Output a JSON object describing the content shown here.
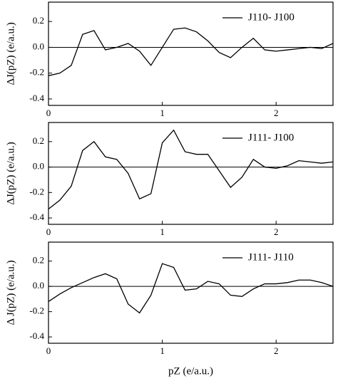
{
  "chart_data": [
    {
      "type": "line",
      "ylabel": "ΔJ(pZ) (e/a.u.)",
      "legend": "upper right",
      "x": [
        0,
        0.1,
        0.2,
        0.3,
        0.4,
        0.5,
        0.6,
        0.7,
        0.8,
        0.9,
        1.0,
        1.1,
        1.2,
        1.3,
        1.4,
        1.5,
        1.6,
        1.7,
        1.8,
        1.9,
        2.0,
        2.1,
        2.2,
        2.3,
        2.4,
        2.5
      ],
      "series": [
        {
          "name": "J110- J100",
          "color": "#000000",
          "values": [
            -0.22,
            -0.2,
            -0.14,
            0.1,
            0.13,
            -0.02,
            0.0,
            0.03,
            -0.03,
            -0.14,
            0.0,
            0.14,
            0.15,
            0.12,
            0.05,
            -0.04,
            -0.08,
            0.0,
            0.07,
            -0.02,
            -0.03,
            -0.02,
            -0.01,
            0.0,
            -0.01,
            0.03
          ]
        }
      ],
      "xlim": [
        0,
        2.5
      ],
      "xticks": [
        0,
        1,
        2
      ],
      "ylim": [
        -0.45,
        0.35
      ],
      "yticks": [
        {
          "value": 0.2,
          "label": "0.2"
        },
        {
          "value": 0,
          "label": "0.0"
        },
        {
          "value": -0.2,
          "label": "-0.2"
        },
        {
          "value": -0.4,
          "label": "-0.4"
        }
      ]
    },
    {
      "type": "line",
      "ylabel": "ΔJ(pZ) (e/a.u.)",
      "legend": "upper right",
      "x": [
        0,
        0.1,
        0.2,
        0.3,
        0.4,
        0.5,
        0.6,
        0.7,
        0.8,
        0.9,
        1.0,
        1.1,
        1.2,
        1.3,
        1.4,
        1.5,
        1.6,
        1.7,
        1.8,
        1.9,
        2.0,
        2.1,
        2.2,
        2.3,
        2.4,
        2.5
      ],
      "series": [
        {
          "name": "J111- J100",
          "color": "#000000",
          "values": [
            -0.33,
            -0.26,
            -0.15,
            0.13,
            0.2,
            0.08,
            0.06,
            -0.05,
            -0.25,
            -0.21,
            0.19,
            0.29,
            0.12,
            0.1,
            0.1,
            -0.03,
            -0.16,
            -0.08,
            0.06,
            0.0,
            -0.01,
            0.01,
            0.05,
            0.04,
            0.03,
            0.04
          ]
        }
      ],
      "xlim": [
        0,
        2.5
      ],
      "xticks": [
        0,
        1,
        2
      ],
      "ylim": [
        -0.45,
        0.35
      ],
      "yticks": [
        {
          "value": 0.2,
          "label": "0.2"
        },
        {
          "value": 0,
          "label": "0.0"
        },
        {
          "value": -0.2,
          "label": "-0.2"
        },
        {
          "value": -0.4,
          "label": "-0.4"
        }
      ]
    },
    {
      "type": "line",
      "ylabel": "Δ J(pZ) (e/a.u.)",
      "xlabel": "pZ (e/a.u.)",
      "legend": "upper right",
      "x": [
        0,
        0.1,
        0.2,
        0.3,
        0.4,
        0.5,
        0.6,
        0.7,
        0.8,
        0.9,
        1.0,
        1.1,
        1.2,
        1.3,
        1.4,
        1.5,
        1.6,
        1.7,
        1.8,
        1.9,
        2.0,
        2.1,
        2.2,
        2.3,
        2.4,
        2.5
      ],
      "series": [
        {
          "name": "J111- J110",
          "color": "#000000",
          "values": [
            -0.12,
            -0.06,
            -0.01,
            0.03,
            0.07,
            0.1,
            0.06,
            -0.14,
            -0.21,
            -0.07,
            0.18,
            0.15,
            -0.03,
            -0.02,
            0.04,
            0.02,
            -0.07,
            -0.08,
            -0.02,
            0.02,
            0.02,
            0.03,
            0.05,
            0.05,
            0.03,
            0.0
          ]
        }
      ],
      "xlim": [
        0,
        2.5
      ],
      "xticks": [
        0,
        1,
        2
      ],
      "ylim": [
        -0.45,
        0.35
      ],
      "yticks": [
        {
          "value": 0.2,
          "label": "0.2"
        },
        {
          "value": 0,
          "label": "0.0"
        },
        {
          "value": -0.2,
          "label": "-0.2"
        },
        {
          "value": -0.4,
          "label": "-0.4"
        }
      ]
    }
  ]
}
